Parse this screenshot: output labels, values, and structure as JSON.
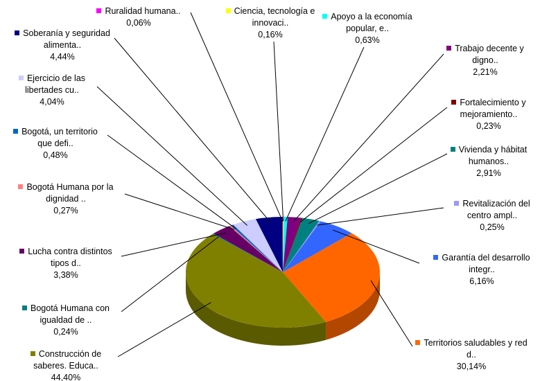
{
  "chart_data": {
    "type": "pie3d",
    "categories": [
      "Ciencia, tecnología e innovaci..",
      "Apoyo a la economía popular, e..",
      "Trabajo decente y digno..",
      "Fortalecimiento y mejoramiento..",
      "Vivienda y hábitat humanos..",
      "Revitalización del centro ampl..",
      "Garantía del desarrollo integr..",
      "Territorios saludables y red d..",
      "Construcción de saberes. Educa..",
      "Bogotá Humana con igualdad de ..",
      "Lucha contra distintos tipos d..",
      "Bogotá Humana por la dignidad ..",
      "Bogotá, un territorio que defi..",
      "Ejercicio de las libertades cu..",
      "Soberanía y seguridad alimenta..",
      "Ruralidad humana.."
    ],
    "values": [
      0.16,
      0.63,
      2.21,
      0.23,
      2.91,
      0.25,
      6.16,
      30.14,
      44.4,
      0.24,
      3.38,
      0.27,
      0.48,
      4.04,
      4.44,
      0.06
    ],
    "value_labels": [
      "0,16%",
      "0,63%",
      "2,21%",
      "0,23%",
      "2,91%",
      "0,25%",
      "6,16%",
      "30,14%",
      "44,40%",
      "0,24%",
      "3,38%",
      "0,27%",
      "0,48%",
      "4,04%",
      "4,44%",
      "0,06%"
    ],
    "colors": [
      "#ffff00",
      "#00ffff",
      "#800080",
      "#800000",
      "#008080",
      "#9999ff",
      "#3366ff",
      "#ff6600",
      "#808000",
      "#008080",
      "#660066",
      "#ff8080",
      "#0066cc",
      "#ccccff",
      "#000080",
      "#ff00ff"
    ]
  }
}
